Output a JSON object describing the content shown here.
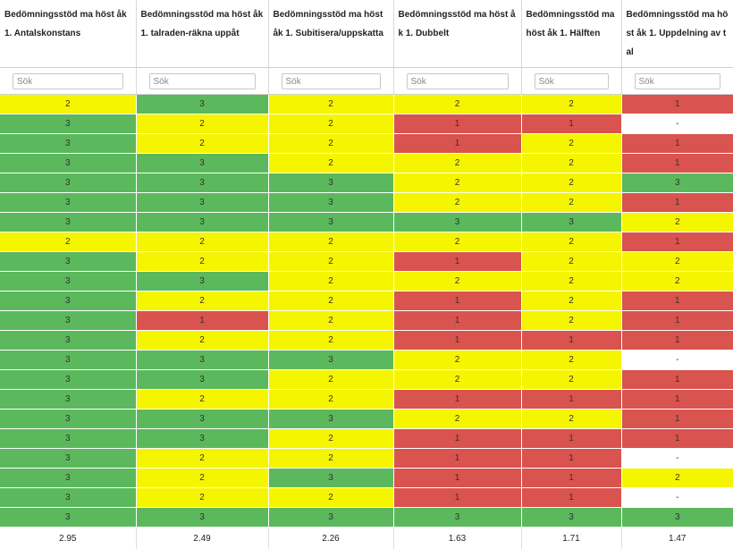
{
  "columns": [
    {
      "header": "Bedömningsstöd ma höst åk 1. Antalskonstans",
      "search_placeholder": "Sök"
    },
    {
      "header": "Bedömningsstöd ma höst åk 1. talraden-räkna uppåt",
      "search_placeholder": "Sök"
    },
    {
      "header": "Bedömningsstöd ma höst åk 1. Subitisera/uppskatta",
      "search_placeholder": "Sök"
    },
    {
      "header": "Bedömningsstöd ma höst åk 1. Dubbelt",
      "search_placeholder": "Sök"
    },
    {
      "header": "Bedömningsstöd ma höst åk 1. Hälften",
      "search_placeholder": "Sök"
    },
    {
      "header": "Bedömningsstöd ma höst åk 1. Uppdelning av tal",
      "search_placeholder": "Sök"
    }
  ],
  "rows": [
    [
      "2",
      "3",
      "2",
      "2",
      "2",
      "1"
    ],
    [
      "3",
      "2",
      "2",
      "1",
      "1",
      "-"
    ],
    [
      "3",
      "2",
      "2",
      "1",
      "2",
      "1"
    ],
    [
      "3",
      "3",
      "2",
      "2",
      "2",
      "1"
    ],
    [
      "3",
      "3",
      "3",
      "2",
      "2",
      "3"
    ],
    [
      "3",
      "3",
      "3",
      "2",
      "2",
      "1"
    ],
    [
      "3",
      "3",
      "3",
      "3",
      "3",
      "2"
    ],
    [
      "2",
      "2",
      "2",
      "2",
      "2",
      "1"
    ],
    [
      "3",
      "2",
      "2",
      "1",
      "2",
      "2"
    ],
    [
      "3",
      "3",
      "2",
      "2",
      "2",
      "2"
    ],
    [
      "3",
      "2",
      "2",
      "1",
      "2",
      "1"
    ],
    [
      "3",
      "1",
      "2",
      "1",
      "2",
      "1"
    ],
    [
      "3",
      "2",
      "2",
      "1",
      "1",
      "1"
    ],
    [
      "3",
      "3",
      "3",
      "2",
      "2",
      "-"
    ],
    [
      "3",
      "3",
      "2",
      "2",
      "2",
      "1"
    ],
    [
      "3",
      "2",
      "2",
      "1",
      "1",
      "1"
    ],
    [
      "3",
      "3",
      "3",
      "2",
      "2",
      "1"
    ],
    [
      "3",
      "3",
      "2",
      "1",
      "1",
      "1"
    ],
    [
      "3",
      "2",
      "2",
      "1",
      "1",
      "-"
    ],
    [
      "3",
      "2",
      "3",
      "1",
      "1",
      "2"
    ],
    [
      "3",
      "2",
      "2",
      "1",
      "1",
      "-"
    ],
    [
      "3",
      "3",
      "3",
      "3",
      "3",
      "3"
    ]
  ],
  "footer": [
    "2.95",
    "2.49",
    "2.26",
    "1.63",
    "1.71",
    "1.47"
  ],
  "colors": {
    "score_1": "#d9534f",
    "score_2": "#f5f500",
    "score_3": "#5cb85c",
    "empty": "#ffffff"
  }
}
